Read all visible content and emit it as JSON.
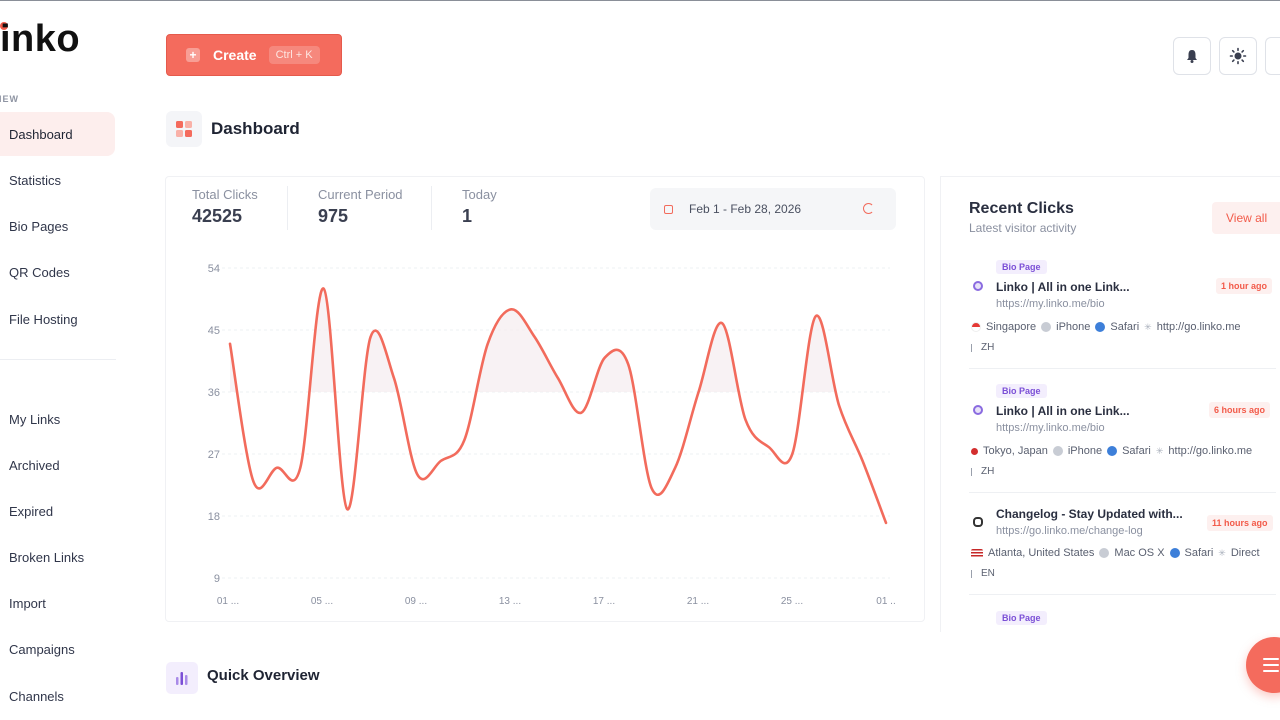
{
  "brand": {
    "logo_text": "inko"
  },
  "sidebar": {
    "section_label": "VIEW",
    "items": [
      {
        "label": "Dashboard",
        "active": true
      },
      {
        "label": "Statistics"
      },
      {
        "label": "Bio Pages"
      },
      {
        "label": "QR Codes"
      },
      {
        "label": "File Hosting"
      },
      {
        "label": "My Links"
      },
      {
        "label": "Archived"
      },
      {
        "label": "Expired"
      },
      {
        "label": "Broken Links"
      },
      {
        "label": "Import"
      },
      {
        "label": "Campaigns"
      },
      {
        "label": "Channels"
      }
    ]
  },
  "toolbar": {
    "create_label": "Create",
    "create_shortcut": "Ctrl + K",
    "icons": [
      "bell-icon",
      "sun-icon"
    ]
  },
  "page": {
    "title": "Dashboard"
  },
  "stats": {
    "total_clicks_label": "Total Clicks",
    "total_clicks_value": "42525",
    "current_period_label": "Current Period",
    "current_period_value": "975",
    "today_label": "Today",
    "today_value": "1",
    "date_range": "Feb 1 - Feb 28, 2026"
  },
  "chart_data": {
    "type": "line",
    "y_ticks": [
      "54",
      "45",
      "36",
      "27",
      "18",
      "9"
    ],
    "ylim": [
      9,
      54
    ],
    "x_ticks": [
      "01 ...",
      "05 ...",
      "09 ...",
      "13 ...",
      "17 ...",
      "21 ...",
      "25 ...",
      "01 .."
    ],
    "series": [
      {
        "color": "#f26b5c",
        "x": [
          1,
          2,
          3,
          4,
          5,
          6,
          7,
          8,
          9,
          10,
          11,
          12,
          13,
          14,
          15,
          16,
          17,
          18,
          19,
          20,
          21,
          22,
          23,
          24,
          25,
          26,
          27,
          28,
          29
        ],
        "y": [
          43,
          23,
          25,
          25,
          51,
          19,
          44,
          38,
          24,
          26,
          29,
          43,
          48,
          44,
          38,
          33,
          41,
          40,
          22,
          25,
          36,
          46,
          32,
          28,
          27,
          47,
          34,
          26,
          17
        ]
      }
    ],
    "grid": true
  },
  "recent_clicks": {
    "title": "Recent Clicks",
    "subtitle": "Latest visitor activity",
    "view_all": "View all",
    "items": [
      {
        "badge": "Bio Page",
        "title": "Linko | All in one Link...",
        "url": "https://my.linko.me/bio",
        "time": "1 hour ago",
        "location": "Singapore",
        "os": "iPhone",
        "browser": "Safari",
        "referrer": "http://go.linko.me",
        "language": "ZH"
      },
      {
        "badge": "Bio Page",
        "title": "Linko | All in one Link...",
        "url": "https://my.linko.me/bio",
        "time": "6 hours ago",
        "location": "Tokyo, Japan",
        "os": "iPhone",
        "browser": "Safari",
        "referrer": "http://go.linko.me",
        "language": "ZH"
      },
      {
        "badge": "",
        "title": "Changelog - Stay Updated with...",
        "url": "https://go.linko.me/change-log",
        "time": "11 hours ago",
        "location": "Atlanta, United States",
        "os": "Mac OS X",
        "browser": "Safari",
        "referrer": "Direct",
        "language": "EN"
      },
      {
        "badge": "Bio Page"
      }
    ]
  },
  "quick_overview": {
    "title": "Quick Overview"
  },
  "colors": {
    "accent": "#f46b5d",
    "badge_purple": "#7b4fd6"
  }
}
